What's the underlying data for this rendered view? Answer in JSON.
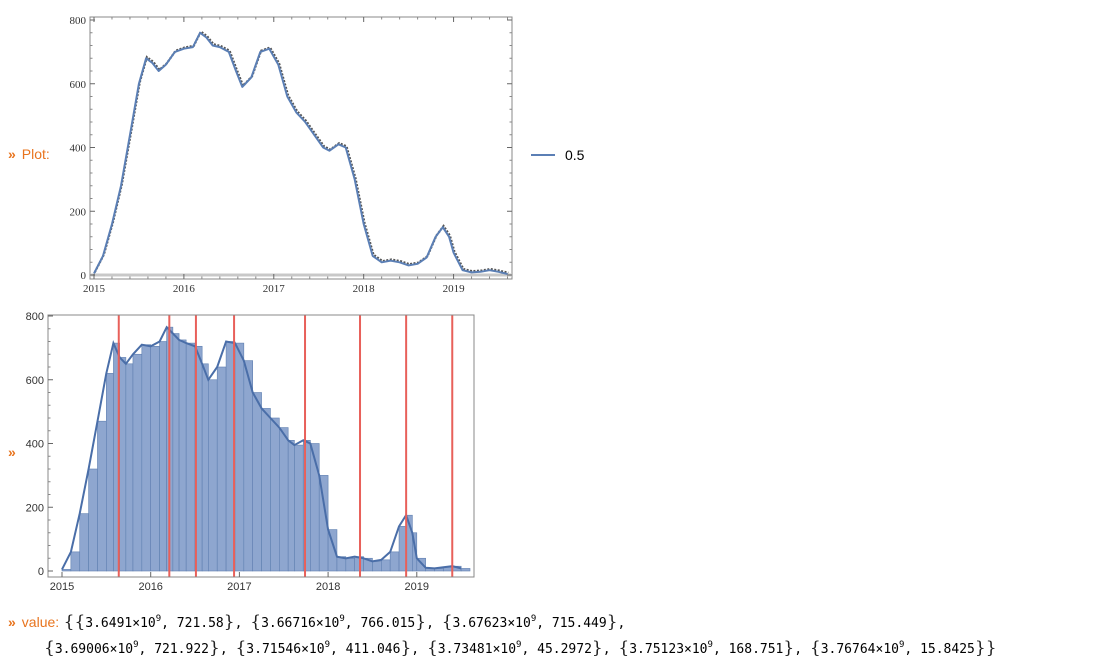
{
  "outputs": {
    "plot_chevron": "»",
    "plot_label": "Plot:",
    "hist_chevron": "»",
    "value_chevron": "»",
    "value_label": "value:"
  },
  "legend": {
    "label": "0.5"
  },
  "colors": {
    "series": "#5b7fb5",
    "data": "#555555",
    "red": "#e8605a",
    "bars": "#8ea6cf",
    "label": "#e8741e"
  },
  "chart_data": [
    {
      "type": "line",
      "xlabel": "",
      "ylabel": "",
      "xlim": [
        2015.0,
        2019.65
      ],
      "ylim": [
        0,
        800
      ],
      "x_ticks": [
        "2015",
        "2016",
        "2017",
        "2018",
        "2019"
      ],
      "y_ticks": [
        "0",
        "200",
        "400",
        "600",
        "800"
      ],
      "legend_position": "right",
      "series": [
        {
          "name": "0.5",
          "x": [
            2015.0,
            2015.1,
            2015.2,
            2015.3,
            2015.4,
            2015.5,
            2015.58,
            2015.65,
            2015.72,
            2015.8,
            2015.9,
            2016.0,
            2016.1,
            2016.18,
            2016.25,
            2016.32,
            2016.4,
            2016.5,
            2016.58,
            2016.65,
            2016.75,
            2016.85,
            2016.95,
            2017.05,
            2017.15,
            2017.25,
            2017.35,
            2017.45,
            2017.55,
            2017.62,
            2017.72,
            2017.8,
            2017.9,
            2018.0,
            2018.1,
            2018.2,
            2018.3,
            2018.4,
            2018.5,
            2018.6,
            2018.7,
            2018.8,
            2018.88,
            2018.95,
            2019.0,
            2019.1,
            2019.2,
            2019.3,
            2019.4,
            2019.5,
            2019.6
          ],
          "y": [
            5,
            60,
            160,
            280,
            440,
            600,
            680,
            665,
            640,
            660,
            700,
            710,
            715,
            760,
            745,
            720,
            715,
            700,
            640,
            590,
            620,
            700,
            710,
            660,
            560,
            510,
            480,
            440,
            400,
            390,
            410,
            400,
            300,
            160,
            60,
            40,
            45,
            40,
            30,
            35,
            55,
            120,
            150,
            120,
            70,
            15,
            8,
            10,
            15,
            10,
            3
          ]
        }
      ]
    },
    {
      "type": "bar",
      "xlabel": "",
      "ylabel": "",
      "xlim": [
        2015.0,
        2019.6
      ],
      "ylim": [
        0,
        800
      ],
      "x_ticks": [
        "2015",
        "2016",
        "2017",
        "2018",
        "2019"
      ],
      "y_ticks": [
        "0",
        "200",
        "400",
        "600",
        "800"
      ],
      "x": [
        2015.0,
        2015.1,
        2015.2,
        2015.3,
        2015.4,
        2015.5,
        2015.58,
        2015.65,
        2015.72,
        2015.8,
        2015.9,
        2016.0,
        2016.1,
        2016.18,
        2016.25,
        2016.32,
        2016.4,
        2016.5,
        2016.58,
        2016.65,
        2016.75,
        2016.85,
        2016.95,
        2017.05,
        2017.15,
        2017.25,
        2017.35,
        2017.45,
        2017.55,
        2017.62,
        2017.72,
        2017.8,
        2017.9,
        2018.0,
        2018.1,
        2018.2,
        2018.3,
        2018.4,
        2018.5,
        2018.6,
        2018.7,
        2018.8,
        2018.88,
        2018.95,
        2019.0,
        2019.1,
        2019.2,
        2019.3,
        2019.4,
        2019.5
      ],
      "values": [
        5,
        60,
        180,
        320,
        470,
        620,
        715,
        670,
        650,
        680,
        710,
        705,
        720,
        765,
        745,
        725,
        715,
        705,
        650,
        600,
        640,
        720,
        715,
        660,
        560,
        510,
        480,
        450,
        410,
        395,
        410,
        400,
        300,
        130,
        45,
        40,
        45,
        40,
        30,
        35,
        60,
        140,
        175,
        120,
        40,
        10,
        8,
        12,
        15,
        8
      ],
      "peak_lines_x": [
        2015.64,
        2016.21,
        2016.51,
        2016.94,
        2017.74,
        2018.36,
        2018.88,
        2019.4
      ]
    }
  ],
  "value_output": {
    "pairs": [
      {
        "mant": "3.6491",
        "y": "721.58"
      },
      {
        "mant": "3.66716",
        "y": "766.015"
      },
      {
        "mant": "3.67623",
        "y": "715.449"
      },
      {
        "mant": "3.69006",
        "y": "721.922"
      },
      {
        "mant": "3.71546",
        "y": "411.046"
      },
      {
        "mant": "3.73481",
        "y": "45.2972"
      },
      {
        "mant": "3.75123",
        "y": "168.751"
      },
      {
        "mant": "3.76764",
        "y": "15.8425"
      }
    ],
    "times": "×",
    "base": "10",
    "exponent": "9"
  }
}
